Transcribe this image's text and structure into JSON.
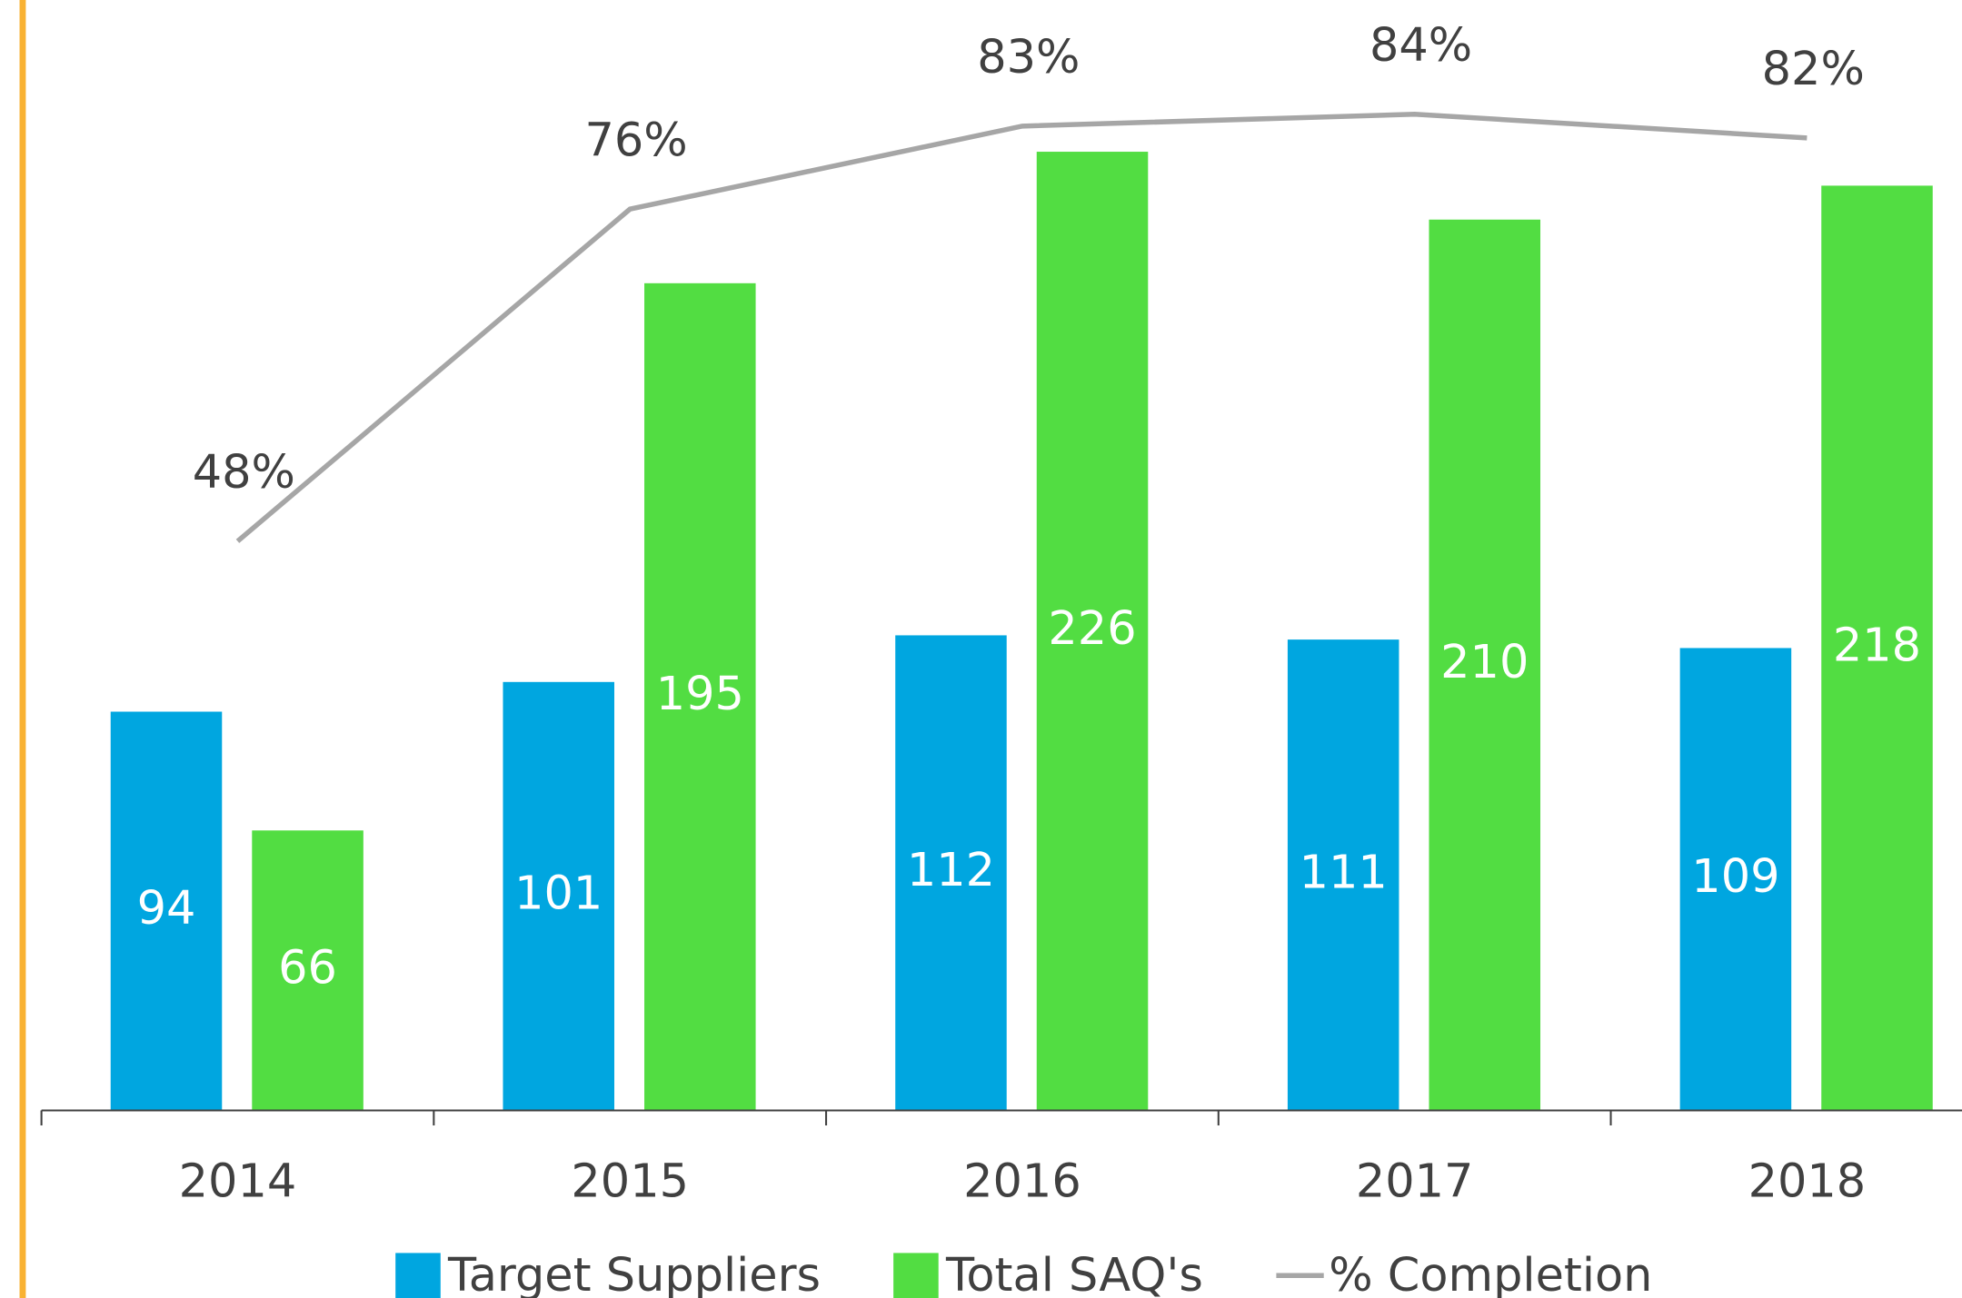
{
  "chart_data": {
    "type": "bar",
    "categories": [
      "2014",
      "2015",
      "2016",
      "2017",
      "2018"
    ],
    "series": [
      {
        "name": "Target Suppliers",
        "color": "#00a6e0",
        "values": [
          94,
          101,
          112,
          111,
          109
        ]
      },
      {
        "name": "Total SAQ's",
        "color": "#52dd42",
        "values": [
          66,
          195,
          226,
          210,
          218
        ]
      },
      {
        "name": "% Completion",
        "color": "#a6a6a6",
        "type": "line",
        "axis": "y2",
        "values": [
          48,
          76,
          83,
          84,
          82
        ],
        "value_labels": [
          "48%",
          "76%",
          "83%",
          "84%",
          "82%"
        ]
      }
    ],
    "ylim": [
      0,
      260
    ],
    "y2lim": [
      0,
      93
    ]
  }
}
